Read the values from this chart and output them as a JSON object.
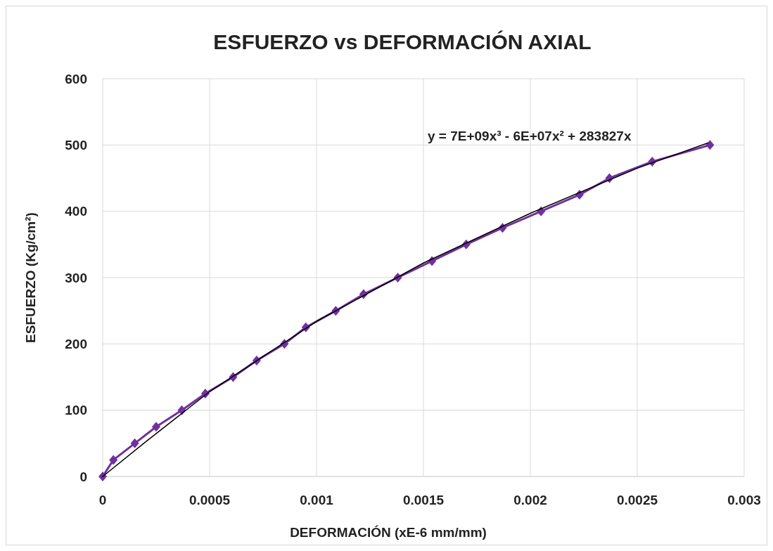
{
  "chart_data": {
    "type": "line",
    "title": "ESFUERZO vs DEFORMACIÓN AXIAL",
    "xlabel": "DEFORMACIÓN (xE-6 mm/mm)",
    "ylabel": "ESFUERZO (Kg/cm²)",
    "xlim": [
      0,
      0.003
    ],
    "xticks": [
      0,
      0.0005,
      0.001,
      0.0015,
      0.002,
      0.0025,
      0.003
    ],
    "ylim": [
      0,
      600
    ],
    "yticks": [
      0,
      100,
      200,
      300,
      400,
      500,
      600
    ],
    "grid": true,
    "annotations": [
      "y = 7E+09x³ - 6E+07x² + 283827x"
    ],
    "series": [
      {
        "type": "line",
        "color": "#000000",
        "marker": "none",
        "x": [
          0,
          0.0002,
          0.0005,
          0.001,
          0.0015,
          0.002,
          0.0025,
          0.00283
        ],
        "values": [
          0,
          52,
          128,
          234,
          322,
          397,
          465,
          503
        ]
      },
      {
        "type": "line",
        "color": "#7030a0",
        "marker": "diamond",
        "x": [
          0,
          5e-05,
          0.00015,
          0.00025,
          0.00037,
          0.00048,
          0.00061,
          0.00072,
          0.00085,
          0.00095,
          0.00109,
          0.00122,
          0.00138,
          0.00154,
          0.0017,
          0.00187,
          0.00205,
          0.00223,
          0.00237,
          0.00257,
          0.00284
        ],
        "values": [
          0,
          25,
          50,
          75,
          100,
          125,
          150,
          175,
          200,
          225,
          250,
          275,
          300,
          325,
          350,
          375,
          400,
          425,
          450,
          475,
          500
        ]
      }
    ]
  }
}
